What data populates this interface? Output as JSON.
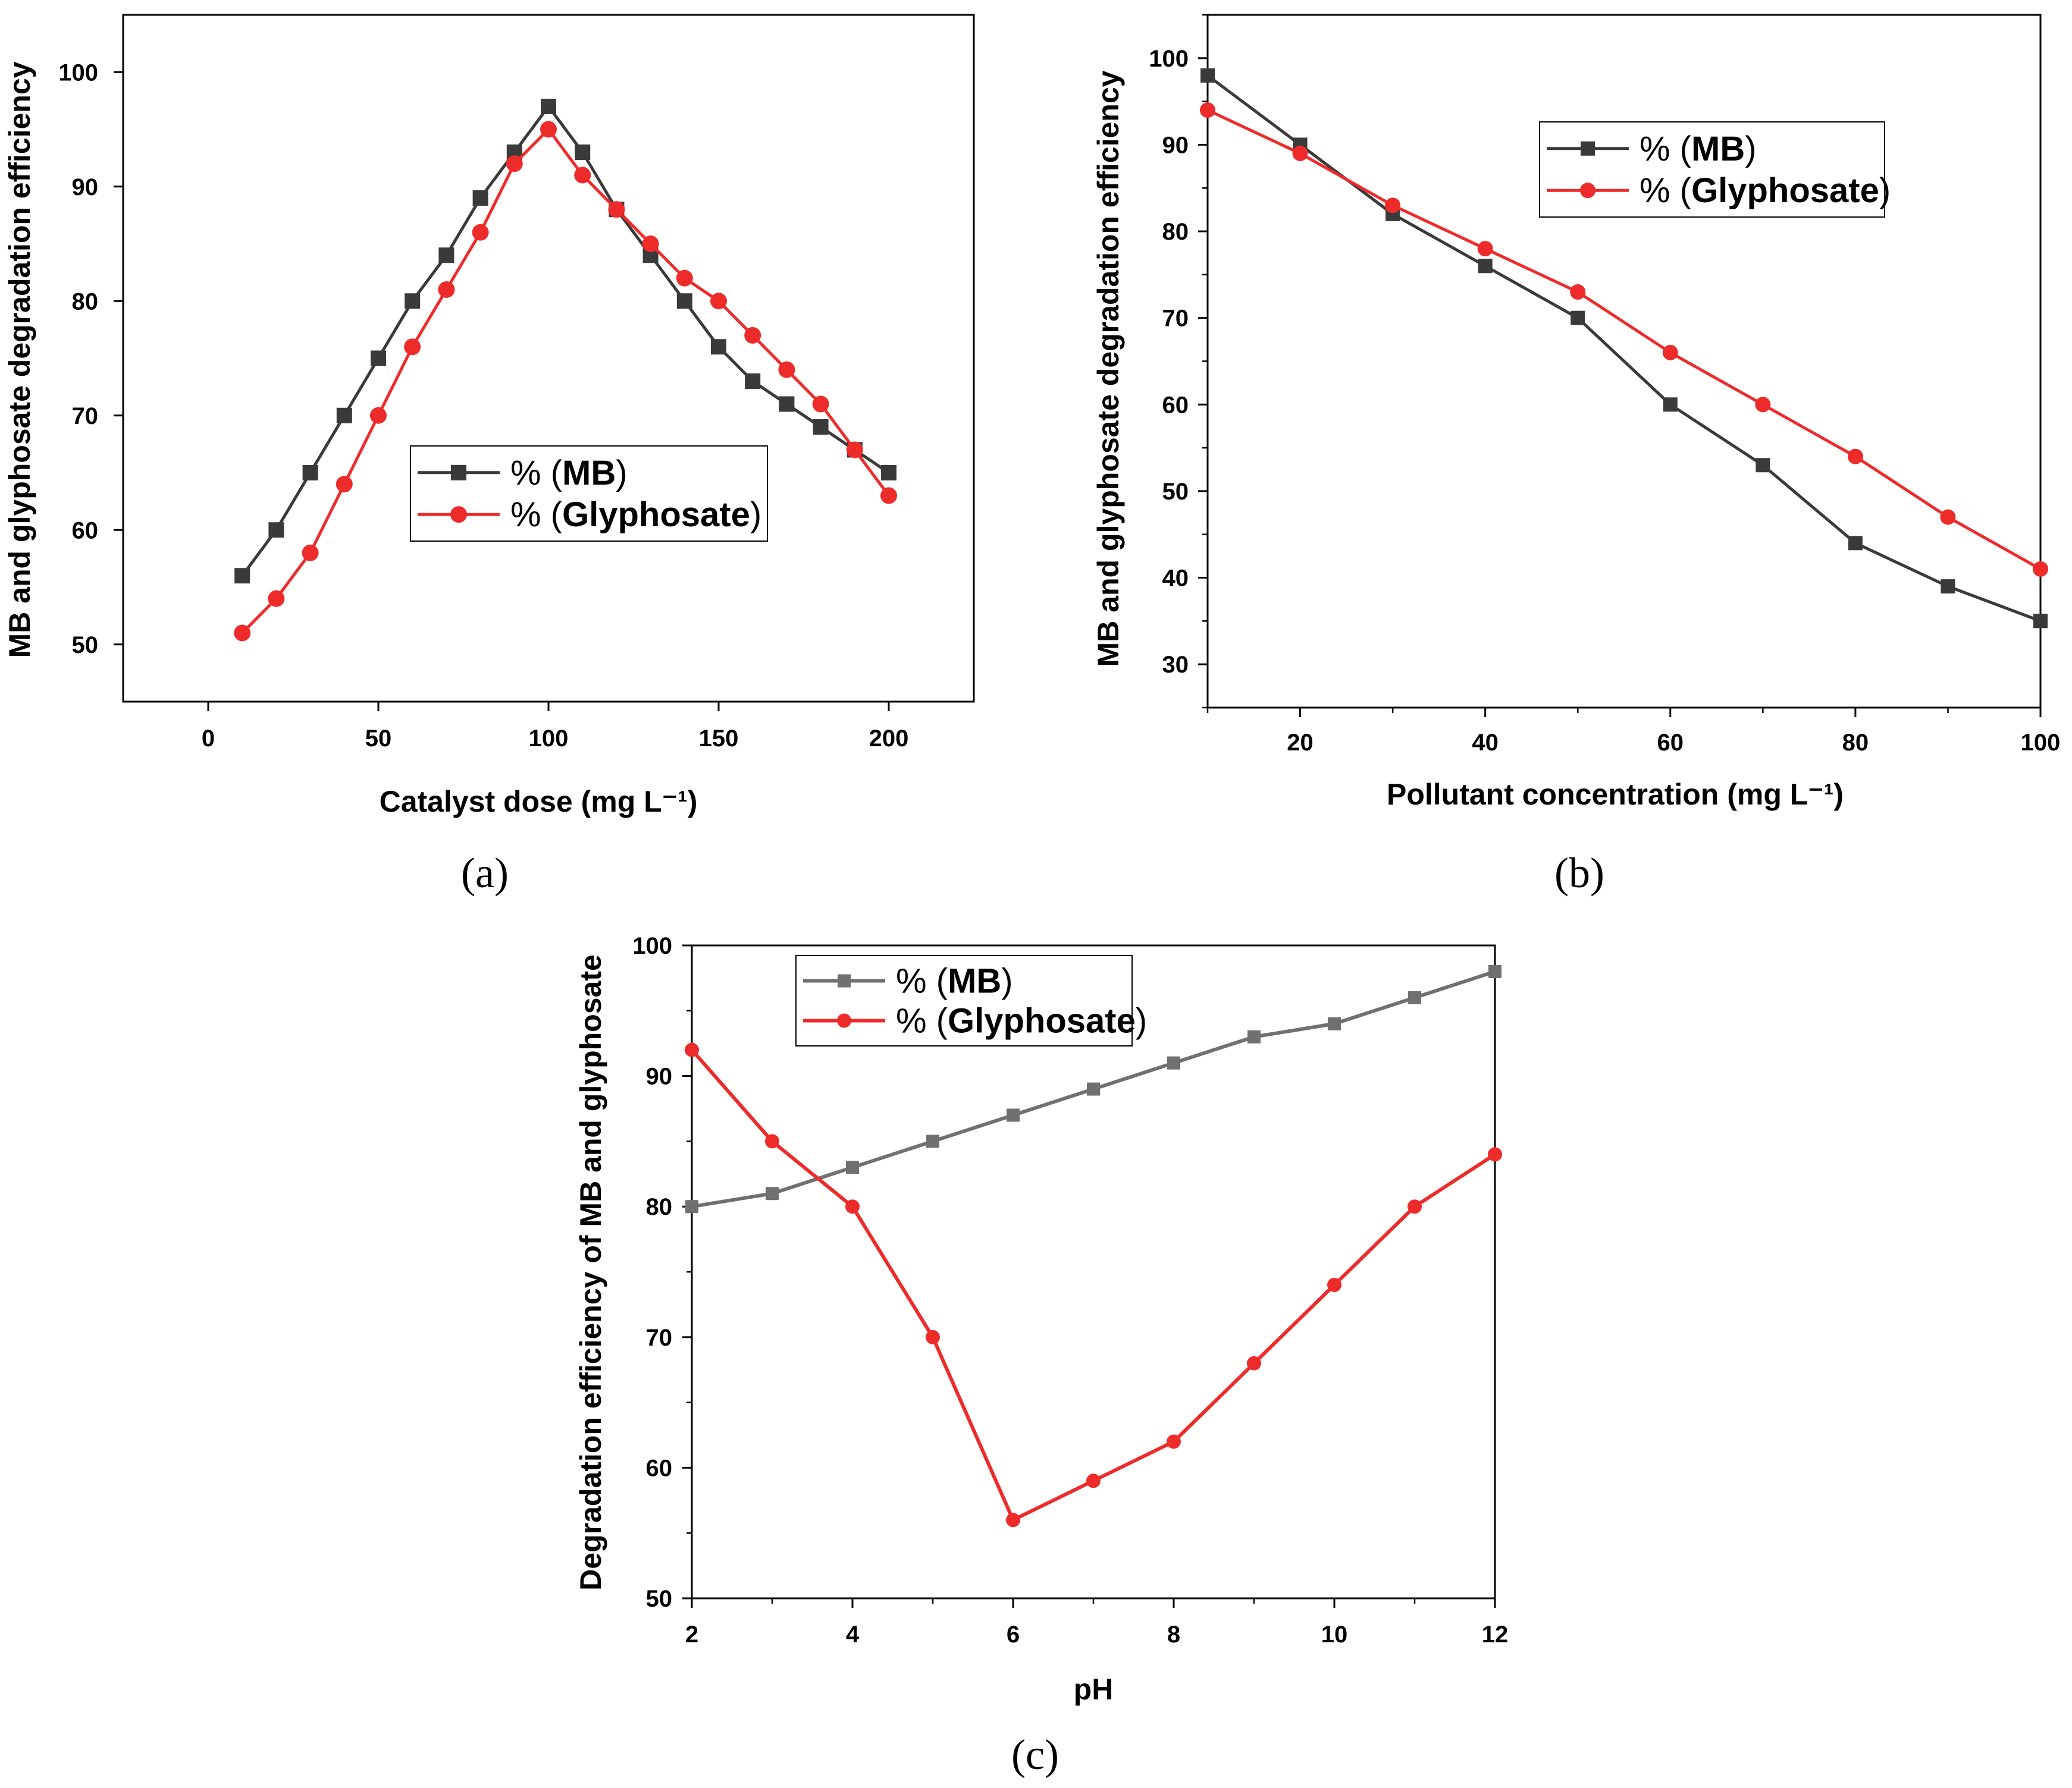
{
  "figure": {
    "panel_labels": [
      "(a)",
      "(b)",
      "(c)"
    ]
  },
  "chart_data": [
    {
      "type": "line",
      "panel": "(a)",
      "title": "",
      "xlabel": "Catalyst dose (mg L⁻¹)",
      "ylabel": "MB and glyphosate degradation efficiency",
      "xlim": [
        -25,
        225
      ],
      "ylim": [
        45,
        105
      ],
      "xticks": [
        0,
        50,
        100,
        150,
        200
      ],
      "yticks": [
        50,
        60,
        70,
        80,
        90,
        100
      ],
      "legend_position": "center-right",
      "series": [
        {
          "name": "% (MB)",
          "legend_prefix": "% (",
          "legend_strong": "MB",
          "legend_suffix": ")",
          "color": "#3a3a3a",
          "marker": "square",
          "x": [
            10,
            20,
            30,
            40,
            50,
            60,
            70,
            80,
            90,
            100,
            110,
            120,
            130,
            140,
            150,
            160,
            170,
            180,
            190,
            200
          ],
          "values": [
            56,
            60,
            65,
            70,
            75,
            80,
            84,
            89,
            93,
            97,
            93,
            88,
            84,
            80,
            76,
            73,
            71,
            69,
            67,
            65
          ]
        },
        {
          "name": "% (Glyphosate)",
          "legend_prefix": "% (",
          "legend_strong": "Glyphosate",
          "legend_suffix": ")",
          "color": "#ee2b2b",
          "marker": "circle",
          "x": [
            10,
            20,
            30,
            40,
            50,
            60,
            70,
            80,
            90,
            100,
            110,
            120,
            130,
            140,
            150,
            160,
            170,
            180,
            190,
            200
          ],
          "values": [
            51,
            54,
            58,
            64,
            70,
            76,
            81,
            86,
            92,
            95,
            91,
            88,
            85,
            82,
            80,
            77,
            74,
            71,
            67,
            63
          ]
        }
      ]
    },
    {
      "type": "line",
      "panel": "(b)",
      "title": "",
      "xlabel": "Pollutant concentration (mg L⁻¹)",
      "ylabel": "MB and glyphosate degradation efficiency",
      "xlim": [
        10,
        100
      ],
      "ylim": [
        25,
        105
      ],
      "xticks": [
        20,
        40,
        60,
        80,
        100
      ],
      "yticks": [
        30,
        40,
        50,
        60,
        70,
        80,
        90,
        100
      ],
      "legend_position": "top-center",
      "series": [
        {
          "name": "% (MB)",
          "legend_prefix": "% (",
          "legend_strong": "MB",
          "legend_suffix": ")",
          "color": "#3a3a3a",
          "marker": "square",
          "x": [
            10,
            20,
            30,
            40,
            50,
            60,
            70,
            80,
            90,
            100
          ],
          "values": [
            98,
            90,
            82,
            76,
            70,
            60,
            53,
            44,
            39,
            35
          ]
        },
        {
          "name": "% (Glyphosate)",
          "legend_prefix": "% (",
          "legend_strong": "Glyphosate",
          "legend_suffix": ")",
          "color": "#ee2b2b",
          "marker": "circle",
          "x": [
            10,
            20,
            30,
            40,
            50,
            60,
            70,
            80,
            90,
            100
          ],
          "values": [
            94,
            89,
            83,
            78,
            73,
            66,
            60,
            54,
            47,
            41
          ]
        }
      ]
    },
    {
      "type": "line",
      "panel": "(c)",
      "title": "",
      "xlabel": "pH",
      "ylabel": "Degradation efficiency of MB and glyphosate",
      "xlim": [
        2,
        12
      ],
      "ylim": [
        50,
        100
      ],
      "xticks": [
        2,
        4,
        6,
        8,
        10,
        12
      ],
      "yticks": [
        50,
        60,
        70,
        80,
        90,
        100
      ],
      "legend_position": "top-left",
      "series": [
        {
          "name": "% (MB)",
          "legend_prefix": "% (",
          "legend_strong": "MB",
          "legend_suffix": ")",
          "color": "#707070",
          "marker": "square",
          "x": [
            2,
            3,
            4,
            5,
            6,
            7,
            8,
            9,
            10,
            11,
            12
          ],
          "values": [
            80,
            81,
            83,
            85,
            87,
            89,
            91,
            93,
            94,
            96,
            98
          ]
        },
        {
          "name": "% (Glyphosate)",
          "legend_prefix": "% (",
          "legend_strong": "Glyphosate",
          "legend_suffix": ")",
          "color": "#ee2b2b",
          "marker": "circle",
          "x": [
            2,
            3,
            4,
            5,
            6,
            7,
            8,
            9,
            10,
            11,
            12
          ],
          "values": [
            92,
            85,
            80,
            70,
            56,
            59,
            62,
            68,
            74,
            80,
            84
          ]
        }
      ]
    }
  ]
}
